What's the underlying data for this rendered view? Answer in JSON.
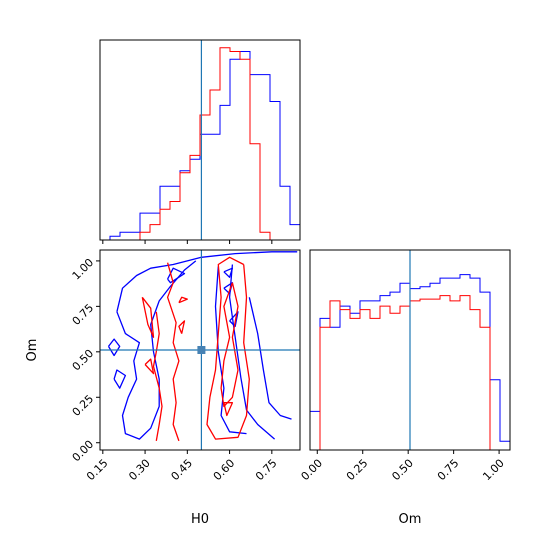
{
  "chart_data": {
    "type": "corner",
    "colors": {
      "run_a": "#0000ff",
      "run_b": "#ff0000",
      "truth": "#1f77b4"
    },
    "parameters": [
      {
        "name": "H0",
        "label": "H0",
        "range": [
          0.14,
          0.85
        ],
        "ticks": [
          0.15,
          0.3,
          0.45,
          0.6,
          0.75
        ],
        "tick_labels": [
          "0.15",
          "0.30",
          "0.45",
          "0.60",
          "0.75"
        ]
      },
      {
        "name": "Om",
        "label": "Om",
        "range": [
          -0.04,
          1.06
        ],
        "ticks": [
          0.0,
          0.25,
          0.5,
          0.75,
          1.0
        ],
        "tick_labels": [
          "0.00",
          "0.25",
          "0.50",
          "0.75",
          "1.00"
        ]
      }
    ],
    "truth": {
      "H0": 0.5,
      "Om": 0.51
    },
    "histograms": [
      {
        "parameter": "H0",
        "edges": [
          0.14,
          0.1755,
          0.211,
          0.2465,
          0.282,
          0.3175,
          0.353,
          0.3885,
          0.424,
          0.4595,
          0.495,
          0.5305,
          0.566,
          0.6015,
          0.637,
          0.6725,
          0.708,
          0.7435,
          0.779,
          0.8145,
          0.85
        ],
        "series": [
          {
            "name": "",
            "color": "#0000ff",
            "counts": [
              0.0,
              0.02,
              0.04,
              0.04,
              0.14,
              0.14,
              0.28,
              0.28,
              0.36,
              0.42,
              0.55,
              0.55,
              0.7,
              0.94,
              0.98,
              0.86,
              0.86,
              0.72,
              0.28,
              0.08
            ]
          },
          {
            "name": "",
            "color": "#ff0000",
            "counts": [
              0.0,
              0.0,
              0.0,
              0.0,
              0.04,
              0.08,
              0.16,
              0.2,
              0.35,
              0.44,
              0.65,
              0.78,
              1.0,
              0.98,
              0.94,
              0.5,
              0.04,
              0.0,
              0.0,
              0.0
            ]
          }
        ]
      },
      {
        "parameter": "Om",
        "edges": [
          -0.04,
          0.015,
          0.07,
          0.125,
          0.18,
          0.235,
          0.29,
          0.345,
          0.4,
          0.455,
          0.51,
          0.565,
          0.62,
          0.675,
          0.73,
          0.785,
          0.84,
          0.895,
          0.95,
          1.005,
          1.06
        ],
        "series": [
          {
            "name": "",
            "color": "#0000ff",
            "counts": [
              0.22,
              0.75,
              0.7,
              0.82,
              0.78,
              0.85,
              0.85,
              0.88,
              0.9,
              0.95,
              0.92,
              0.93,
              0.95,
              0.98,
              0.98,
              1.0,
              0.98,
              0.9,
              0.4,
              0.05
            ]
          },
          {
            "name": "",
            "color": "#ff0000",
            "counts": [
              0.0,
              0.7,
              0.85,
              0.8,
              0.75,
              0.8,
              0.75,
              0.82,
              0.78,
              0.82,
              0.85,
              0.86,
              0.86,
              0.88,
              0.85,
              0.88,
              0.8,
              0.7,
              0.0,
              0.0
            ]
          }
        ]
      }
    ],
    "contours": {
      "x": "H0",
      "y": "Om",
      "series": [
        {
          "name": "",
          "color": "#0000ff",
          "paths": [
            [
              [
                0.2,
                0.72
              ],
              [
                0.22,
                0.85
              ],
              [
                0.27,
                0.92
              ],
              [
                0.32,
                0.96
              ],
              [
                0.4,
                0.98
              ],
              [
                0.5,
                1.02
              ],
              [
                0.62,
                1.04
              ],
              [
                0.75,
                1.05
              ],
              [
                0.84,
                1.05
              ]
            ],
            [
              [
                0.38,
                0.9
              ],
              [
                0.4,
                0.96
              ],
              [
                0.44,
                0.93
              ],
              [
                0.39,
                0.88
              ],
              [
                0.38,
                0.9
              ]
            ],
            [
              [
                0.2,
                0.72
              ],
              [
                0.23,
                0.6
              ],
              [
                0.28,
                0.55
              ],
              [
                0.26,
                0.45
              ],
              [
                0.27,
                0.35
              ],
              [
                0.24,
                0.25
              ],
              [
                0.22,
                0.15
              ],
              [
                0.23,
                0.05
              ],
              [
                0.28,
                0.02
              ],
              [
                0.32,
                0.08
              ],
              [
                0.35,
                0.2
              ],
              [
                0.35,
                0.35
              ],
              [
                0.33,
                0.5
              ],
              [
                0.32,
                0.65
              ],
              [
                0.35,
                0.78
              ],
              [
                0.39,
                0.86
              ],
              [
                0.44,
                0.95
              ],
              [
                0.48,
                1.0
              ]
            ],
            [
              [
                0.17,
                0.53
              ],
              [
                0.19,
                0.48
              ],
              [
                0.21,
                0.53
              ],
              [
                0.19,
                0.57
              ],
              [
                0.17,
                0.53
              ]
            ],
            [
              [
                0.19,
                0.35
              ],
              [
                0.21,
                0.3
              ],
              [
                0.23,
                0.37
              ],
              [
                0.2,
                0.4
              ],
              [
                0.19,
                0.35
              ]
            ],
            [
              [
                0.67,
                0.8
              ],
              [
                0.7,
                0.6
              ],
              [
                0.72,
                0.4
              ],
              [
                0.74,
                0.22
              ],
              [
                0.78,
                0.15
              ],
              [
                0.82,
                0.13
              ]
            ],
            [
              [
                0.61,
                0.98
              ],
              [
                0.6,
                0.8
              ],
              [
                0.62,
                0.58
              ],
              [
                0.64,
                0.36
              ],
              [
                0.66,
                0.18
              ],
              [
                0.7,
                0.1
              ],
              [
                0.76,
                0.02
              ]
            ],
            [
              [
                0.56,
                0.97
              ],
              [
                0.55,
                0.75
              ],
              [
                0.56,
                0.5
              ],
              [
                0.58,
                0.3
              ],
              [
                0.57,
                0.15
              ],
              [
                0.6,
                0.06
              ],
              [
                0.66,
                0.05
              ]
            ],
            [
              [
                0.6,
                0.67
              ],
              [
                0.63,
                0.72
              ],
              [
                0.62,
                0.64
              ],
              [
                0.6,
                0.67
              ]
            ],
            [
              [
                0.58,
                0.85
              ],
              [
                0.61,
                0.88
              ],
              [
                0.6,
                0.82
              ],
              [
                0.58,
                0.85
              ]
            ],
            [
              [
                0.58,
                0.94
              ],
              [
                0.61,
                0.96
              ],
              [
                0.6,
                0.91
              ],
              [
                0.58,
                0.94
              ]
            ]
          ]
        },
        {
          "name": "",
          "color": "#ff0000",
          "paths": [
            [
              [
                0.34,
                0.72
              ],
              [
                0.35,
                0.6
              ],
              [
                0.34,
                0.5
              ],
              [
                0.33,
                0.42
              ],
              [
                0.35,
                0.3
              ],
              [
                0.36,
                0.2
              ],
              [
                0.35,
                0.1
              ],
              [
                0.34,
                0.01
              ]
            ],
            [
              [
                0.38,
                0.99
              ],
              [
                0.4,
                0.88
              ],
              [
                0.38,
                0.8
              ],
              [
                0.41,
                0.66
              ],
              [
                0.4,
                0.55
              ],
              [
                0.42,
                0.45
              ],
              [
                0.4,
                0.35
              ],
              [
                0.41,
                0.22
              ],
              [
                0.4,
                0.1
              ],
              [
                0.42,
                0.01
              ]
            ],
            [
              [
                0.29,
                0.8
              ],
              [
                0.31,
                0.65
              ],
              [
                0.33,
                0.58
              ],
              [
                0.32,
                0.74
              ],
              [
                0.29,
                0.8
              ]
            ],
            [
              [
                0.3,
                0.43
              ],
              [
                0.33,
                0.38
              ],
              [
                0.32,
                0.46
              ],
              [
                0.3,
                0.43
              ]
            ],
            [
              [
                0.43,
                0.6
              ],
              [
                0.44,
                0.67
              ],
              [
                0.42,
                0.64
              ],
              [
                0.43,
                0.6
              ]
            ],
            [
              [
                0.42,
                0.77
              ],
              [
                0.45,
                0.79
              ],
              [
                0.43,
                0.8
              ],
              [
                0.42,
                0.77
              ]
            ],
            [
              [
                0.65,
                0.98
              ],
              [
                0.66,
                0.8
              ],
              [
                0.65,
                0.55
              ],
              [
                0.67,
                0.35
              ],
              [
                0.66,
                0.15
              ],
              [
                0.63,
                0.03
              ],
              [
                0.55,
                0.02
              ],
              [
                0.52,
                0.1
              ],
              [
                0.53,
                0.25
              ],
              [
                0.55,
                0.4
              ],
              [
                0.56,
                0.6
              ],
              [
                0.57,
                0.8
              ],
              [
                0.56,
                0.98
              ],
              [
                0.6,
                1.02
              ],
              [
                0.65,
                0.98
              ]
            ],
            [
              [
                0.61,
                0.88
              ],
              [
                0.63,
                0.75
              ],
              [
                0.61,
                0.58
              ],
              [
                0.63,
                0.4
              ],
              [
                0.61,
                0.25
              ],
              [
                0.58,
                0.2
              ],
              [
                0.57,
                0.3
              ],
              [
                0.58,
                0.45
              ],
              [
                0.6,
                0.58
              ],
              [
                0.58,
                0.75
              ],
              [
                0.61,
                0.88
              ]
            ],
            [
              [
                0.58,
                0.22
              ],
              [
                0.59,
                0.15
              ],
              [
                0.61,
                0.22
              ],
              [
                0.58,
                0.22
              ]
            ]
          ]
        }
      ]
    }
  }
}
